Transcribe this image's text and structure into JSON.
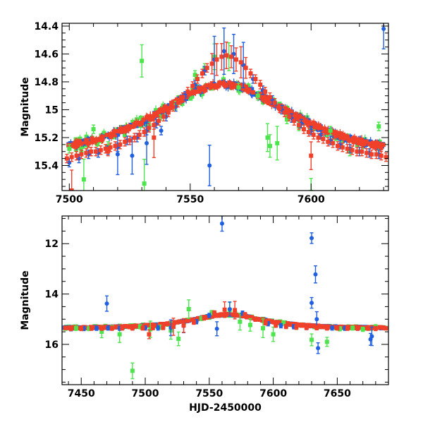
{
  "chart_data": [
    {
      "type": "scatter",
      "panel": "top",
      "title": "",
      "xlabel": "",
      "ylabel": "Magnitude",
      "xlim": [
        7497,
        7632
      ],
      "ylim": [
        15.58,
        14.38
      ],
      "y_inverted": true,
      "x_ticks": [
        7500,
        7550,
        7600
      ],
      "y_ticks": [
        14.4,
        14.6,
        14.8,
        15,
        15.2,
        15.4
      ],
      "x_tick_labels": [
        "7500",
        "7550",
        "7600"
      ],
      "y_tick_labels": [
        "14.4",
        "14.6",
        "14.8",
        "15",
        "15.2",
        "15.4"
      ],
      "grid": false,
      "legend": "none",
      "colors": {
        "red": "#f0402a",
        "blue": "#1f5fe0",
        "green": "#4ee44e"
      },
      "model": {
        "kind": "microlensing",
        "t0": 7564,
        "u0": 0.72,
        "tE": 42,
        "baseline_mag": 15.36
      },
      "series": [
        {
          "color": "red",
          "points": [
            [
              7499,
              15.35
            ],
            [
              7501,
              15.34
            ],
            [
              7503,
              15.33
            ],
            [
              7505,
              15.32
            ],
            [
              7507,
              15.31
            ],
            [
              7509,
              15.3
            ],
            [
              7511,
              15.3
            ],
            [
              7513,
              15.29
            ],
            [
              7515,
              15.28
            ],
            [
              7517,
              15.27
            ],
            [
              7519,
              15.26
            ],
            [
              7521,
              15.25
            ],
            [
              7523,
              15.23
            ],
            [
              7525,
              15.22
            ],
            [
              7527,
              15.2
            ],
            [
              7529,
              15.18
            ],
            [
              7531,
              15.16
            ],
            [
              7533,
              15.13
            ],
            [
              7535,
              15.11
            ],
            [
              7537,
              15.08
            ],
            [
              7539,
              15.05
            ],
            [
              7541,
              15.02
            ],
            [
              7543,
              14.98
            ],
            [
              7545,
              14.95
            ],
            [
              7547,
              14.91
            ],
            [
              7549,
              14.87
            ],
            [
              7551,
              14.83
            ],
            [
              7553,
              14.78
            ],
            [
              7555,
              14.74
            ],
            [
              7557,
              14.7
            ],
            [
              7559,
              14.67
            ],
            [
              7561,
              14.64
            ],
            [
              7563,
              14.62
            ],
            [
              7565,
              14.61
            ],
            [
              7567,
              14.62
            ],
            [
              7569,
              14.64
            ],
            [
              7571,
              14.66
            ],
            [
              7573,
              14.7
            ],
            [
              7575,
              14.74
            ],
            [
              7577,
              14.78
            ],
            [
              7579,
              14.82
            ],
            [
              7581,
              14.87
            ],
            [
              7583,
              14.91
            ],
            [
              7585,
              14.95
            ],
            [
              7587,
              14.99
            ],
            [
              7589,
              15.02
            ],
            [
              7591,
              15.05
            ],
            [
              7593,
              15.08
            ],
            [
              7595,
              15.11
            ],
            [
              7597,
              15.14
            ],
            [
              7599,
              15.16
            ],
            [
              7601,
              15.18
            ],
            [
              7603,
              15.2
            ],
            [
              7605,
              15.21
            ],
            [
              7607,
              15.23
            ],
            [
              7609,
              15.24
            ],
            [
              7611,
              15.26
            ],
            [
              7613,
              15.27
            ],
            [
              7615,
              15.28
            ],
            [
              7617,
              15.29
            ],
            [
              7619,
              15.3
            ],
            [
              7621,
              15.3
            ],
            [
              7623,
              15.31
            ],
            [
              7625,
              15.32
            ],
            [
              7627,
              15.32
            ],
            [
              7629,
              15.33
            ],
            [
              7631,
              15.34
            ],
            [
              7501,
              15.58
            ],
            [
              7508,
              15.24
            ],
            [
              7516,
              15.3
            ],
            [
              7535,
              15.2
            ],
            [
              7600,
              15.33
            ]
          ]
        },
        {
          "color": "blue",
          "points": [
            [
              7500,
              15.38
            ],
            [
              7504,
              15.35
            ],
            [
              7508,
              15.32
            ],
            [
              7512,
              15.31
            ],
            [
              7516,
              15.29
            ],
            [
              7520,
              15.27
            ],
            [
              7524,
              15.22
            ],
            [
              7528,
              15.2
            ],
            [
              7532,
              15.15
            ],
            [
              7536,
              15.1
            ],
            [
              7540,
              15.05
            ],
            [
              7544,
              14.98
            ],
            [
              7548,
              14.9
            ],
            [
              7552,
              14.82
            ],
            [
              7556,
              14.72
            ],
            [
              7560,
              14.64
            ],
            [
              7564,
              14.58
            ],
            [
              7568,
              14.6
            ],
            [
              7572,
              14.68
            ],
            [
              7576,
              14.78
            ],
            [
              7580,
              14.86
            ],
            [
              7584,
              14.93
            ],
            [
              7588,
              15.0
            ],
            [
              7592,
              15.06
            ],
            [
              7596,
              15.1
            ],
            [
              7600,
              15.15
            ],
            [
              7604,
              15.18
            ],
            [
              7608,
              15.22
            ],
            [
              7612,
              15.25
            ],
            [
              7616,
              15.28
            ],
            [
              7620,
              15.3
            ],
            [
              7624,
              15.31
            ],
            [
              7628,
              15.32
            ],
            [
              7558,
              15.4
            ],
            [
              7538,
              15.15
            ],
            [
              7532,
              15.24
            ],
            [
              7526,
              15.33
            ],
            [
              7630,
              14.42
            ],
            [
              7520,
              15.32
            ]
          ]
        },
        {
          "color": "green",
          "points": [
            [
              7500,
              15.28
            ],
            [
              7505,
              15.3
            ],
            [
              7510,
              15.14
            ],
            [
              7516,
              15.26
            ],
            [
              7530,
              14.65
            ],
            [
              7531,
              15.53
            ],
            [
              7533,
              15.12
            ],
            [
              7544,
              14.97
            ],
            [
              7552,
              14.75
            ],
            [
              7556,
              14.7
            ],
            [
              7560,
              14.62
            ],
            [
              7566,
              14.62
            ],
            [
              7570,
              14.84
            ],
            [
              7578,
              14.9
            ],
            [
              7582,
              15.2
            ],
            [
              7583,
              15.26
            ],
            [
              7586,
              15.24
            ],
            [
              7590,
              15.07
            ],
            [
              7595,
              15.12
            ],
            [
              7600,
              15.59
            ],
            [
              7608,
              15.15
            ],
            [
              7616,
              15.3
            ],
            [
              7628,
              15.12
            ],
            [
              7620,
              15.3
            ],
            [
              7506,
              15.5
            ]
          ]
        }
      ]
    },
    {
      "type": "scatter",
      "panel": "bottom",
      "title": "",
      "xlabel": "HJD-2450000",
      "ylabel": "Magnitude",
      "xlim": [
        7435,
        7690
      ],
      "ylim": [
        17.6,
        10.9
      ],
      "y_inverted": true,
      "x_ticks": [
        7450,
        7500,
        7550,
        7600,
        7650
      ],
      "y_ticks": [
        12,
        14,
        16
      ],
      "x_tick_labels": [
        "7450",
        "7500",
        "7550",
        "7600",
        "7650"
      ],
      "y_tick_labels": [
        "12",
        "14",
        "16"
      ],
      "grid": false,
      "legend": "none",
      "colors": {
        "red": "#f0402a",
        "blue": "#1f5fe0",
        "green": "#4ee44e"
      },
      "model": {
        "kind": "microlensing",
        "t0": 7564,
        "u0": 0.72,
        "tE": 42,
        "baseline_mag": 15.36
      },
      "series": [
        {
          "color": "red",
          "points": [
            [
              7442,
              15.37
            ],
            [
              7450,
              15.37
            ],
            [
              7458,
              15.36
            ],
            [
              7466,
              15.36
            ],
            [
              7474,
              15.36
            ],
            [
              7482,
              15.35
            ],
            [
              7490,
              15.35
            ],
            [
              7498,
              15.35
            ],
            [
              7506,
              15.34
            ],
            [
              7514,
              15.33
            ],
            [
              7522,
              15.3
            ],
            [
              7530,
              15.25
            ],
            [
              7538,
              15.12
            ],
            [
              7546,
              14.95
            ],
            [
              7554,
              14.75
            ],
            [
              7562,
              14.62
            ],
            [
              7570,
              14.64
            ],
            [
              7578,
              14.82
            ],
            [
              7586,
              15.0
            ],
            [
              7594,
              15.15
            ],
            [
              7602,
              15.24
            ],
            [
              7610,
              15.29
            ],
            [
              7618,
              15.32
            ],
            [
              7626,
              15.33
            ],
            [
              7634,
              15.34
            ],
            [
              7642,
              15.35
            ],
            [
              7650,
              15.35
            ],
            [
              7658,
              15.36
            ],
            [
              7666,
              15.36
            ],
            [
              7674,
              15.36
            ],
            [
              7680,
              15.37
            ],
            [
              7503,
              15.6
            ]
          ]
        },
        {
          "color": "blue",
          "points": [
            [
              7442,
              15.38
            ],
            [
              7452,
              15.37
            ],
            [
              7462,
              15.36
            ],
            [
              7470,
              14.38
            ],
            [
              7471,
              15.35
            ],
            [
              7480,
              15.36
            ],
            [
              7490,
              15.35
            ],
            [
              7500,
              15.35
            ],
            [
              7510,
              15.35
            ],
            [
              7520,
              15.34
            ],
            [
              7530,
              15.27
            ],
            [
              7540,
              15.1
            ],
            [
              7550,
              14.85
            ],
            [
              7556,
              15.38
            ],
            [
              7560,
              11.2
            ],
            [
              7566,
              14.6
            ],
            [
              7576,
              14.76
            ],
            [
              7586,
              15.0
            ],
            [
              7596,
              15.18
            ],
            [
              7606,
              15.26
            ],
            [
              7616,
              15.3
            ],
            [
              7626,
              15.33
            ],
            [
              7630,
              11.78
            ],
            [
              7630,
              14.35
            ],
            [
              7633,
              13.22
            ],
            [
              7634,
              15.0
            ],
            [
              7635,
              16.15
            ],
            [
              7646,
              15.35
            ],
            [
              7656,
              15.36
            ],
            [
              7666,
              15.36
            ],
            [
              7676,
              15.8
            ],
            [
              7677,
              15.68
            ]
          ]
        },
        {
          "color": "green",
          "points": [
            [
              7446,
              15.36
            ],
            [
              7456,
              15.37
            ],
            [
              7466,
              15.5
            ],
            [
              7474,
              15.33
            ],
            [
              7480,
              15.6
            ],
            [
              7490,
              17.05
            ],
            [
              7496,
              15.3
            ],
            [
              7504,
              15.4
            ],
            [
              7512,
              15.32
            ],
            [
              7520,
              15.45
            ],
            [
              7526,
              15.78
            ],
            [
              7534,
              14.6
            ],
            [
              7544,
              14.97
            ],
            [
              7552,
              14.74
            ],
            [
              7566,
              14.63
            ],
            [
              7574,
              15.1
            ],
            [
              7582,
              15.23
            ],
            [
              7592,
              15.36
            ],
            [
              7600,
              15.6
            ],
            [
              7608,
              15.15
            ],
            [
              7618,
              15.32
            ],
            [
              7630,
              15.82
            ],
            [
              7642,
              15.9
            ],
            [
              7652,
              15.38
            ],
            [
              7662,
              15.35
            ],
            [
              7670,
              15.4
            ],
            [
              7680,
              15.3
            ]
          ]
        }
      ]
    }
  ]
}
